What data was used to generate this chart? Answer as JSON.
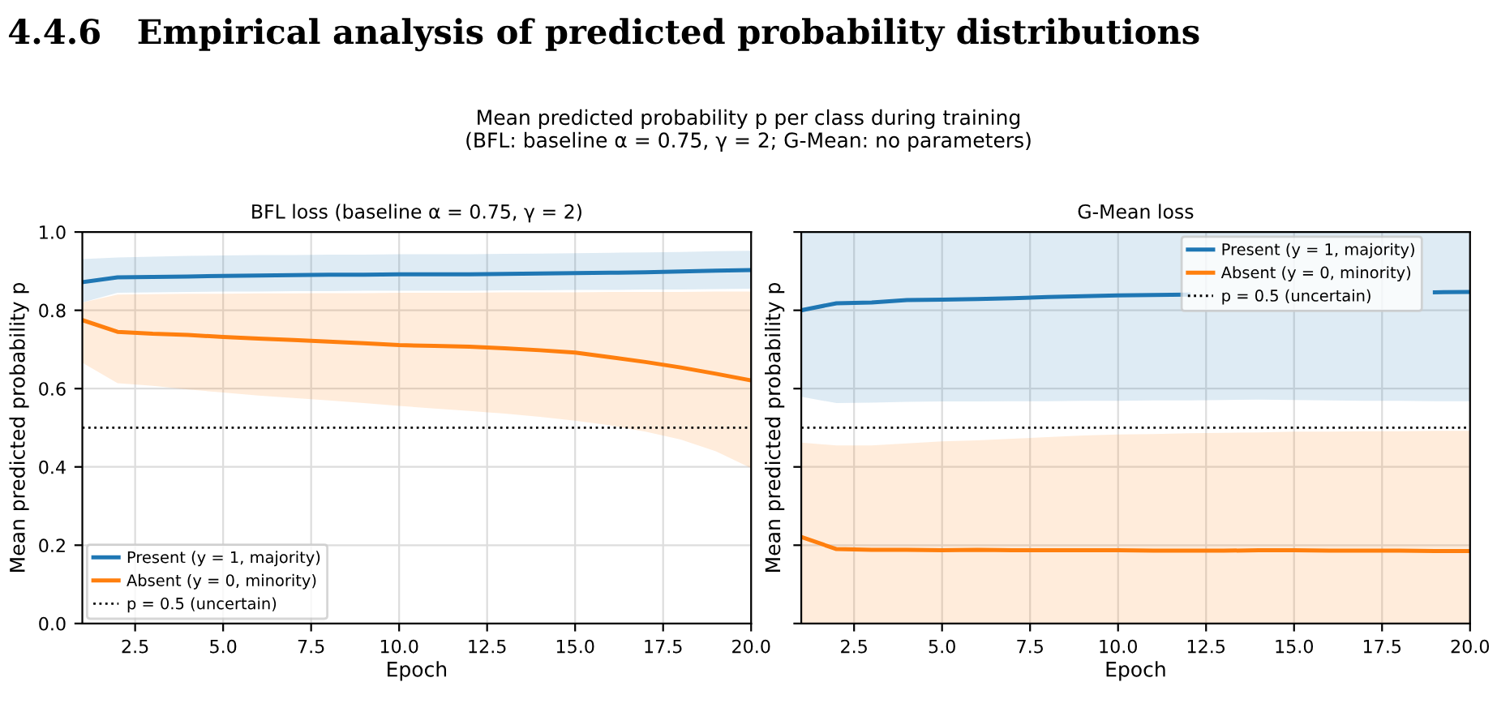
{
  "chart_data": [
    {
      "type": "line",
      "title": "BFL loss (baseline α = 0.75, γ = 2)",
      "xlabel": "Epoch",
      "ylabel": "Mean predicted probability p",
      "annotations": [
        "4.4.6   Empirical analysis of predicted probability distributions",
        "Mean predicted probability p per class during training\n(BFL: baseline α = 0.75, γ = 2; G-Mean: no parameters)"
      ],
      "x": [
        1,
        2,
        3,
        4,
        5,
        6,
        7,
        8,
        9,
        10,
        11,
        12,
        13,
        14,
        15,
        16,
        17,
        18,
        19,
        20
      ],
      "series": [
        {
          "name": "Present (y = 1, majority)",
          "color": "#1f77b4",
          "values": [
            0.872,
            0.884,
            0.885,
            0.886,
            0.888,
            0.889,
            0.89,
            0.891,
            0.891,
            0.892,
            0.892,
            0.892,
            0.893,
            0.894,
            0.895,
            0.896,
            0.897,
            0.899,
            0.901,
            0.903
          ],
          "lower": [
            0.82,
            0.845,
            0.846,
            0.847,
            0.848,
            0.848,
            0.849,
            0.849,
            0.85,
            0.85,
            0.85,
            0.85,
            0.851,
            0.851,
            0.852,
            0.852,
            0.853,
            0.853,
            0.854,
            0.855
          ],
          "upper": [
            0.931,
            0.935,
            0.937,
            0.939,
            0.94,
            0.941,
            0.941,
            0.942,
            0.942,
            0.943,
            0.943,
            0.943,
            0.944,
            0.945,
            0.946,
            0.947,
            0.948,
            0.949,
            0.951,
            0.952
          ]
        },
        {
          "name": "Absent (y = 0, minority)",
          "color": "#ff7f0e",
          "values": [
            0.775,
            0.745,
            0.74,
            0.737,
            0.732,
            0.728,
            0.724,
            0.72,
            0.716,
            0.711,
            0.709,
            0.707,
            0.703,
            0.698,
            0.692,
            0.68,
            0.668,
            0.654,
            0.638,
            0.621
          ],
          "lower": [
            0.666,
            0.614,
            0.607,
            0.598,
            0.59,
            0.582,
            0.576,
            0.57,
            0.563,
            0.556,
            0.549,
            0.543,
            0.536,
            0.528,
            0.518,
            0.506,
            0.49,
            0.47,
            0.44,
            0.397
          ],
          "upper": [
            0.82,
            0.84,
            0.841,
            0.842,
            0.842,
            0.843,
            0.843,
            0.844,
            0.844,
            0.845,
            0.845,
            0.845,
            0.846,
            0.846,
            0.846,
            0.847,
            0.847,
            0.847,
            0.848,
            0.848
          ]
        }
      ],
      "ref_lines": [
        {
          "axis": "y",
          "value": 0.5,
          "label": "p = 0.5 (uncertain)",
          "color": "#000000",
          "line_style": "dotted"
        }
      ],
      "xlim": [
        1,
        20
      ],
      "xticks": [
        {
          "value": 2.5,
          "label": "2.5"
        },
        {
          "value": 5,
          "label": "5.0"
        },
        {
          "value": 7.5,
          "label": "7.5"
        },
        {
          "value": 10,
          "label": "10.0"
        },
        {
          "value": 12.5,
          "label": "12.5"
        },
        {
          "value": 15,
          "label": "15.0"
        },
        {
          "value": 17.5,
          "label": "17.5"
        },
        {
          "value": 20,
          "label": "20.0"
        }
      ],
      "ylim": [
        0,
        1
      ],
      "yticks": [
        {
          "value": 0,
          "label": "0.0"
        },
        {
          "value": 0.2,
          "label": "0.2"
        },
        {
          "value": 0.4,
          "label": "0.4"
        },
        {
          "value": 0.6,
          "label": "0.6"
        },
        {
          "value": 0.8,
          "label": "0.8"
        },
        {
          "value": 1,
          "label": "1.0"
        }
      ],
      "grid": true,
      "legend": "bottom left",
      "line_style": "solid"
    },
    {
      "type": "line",
      "title": "G-Mean loss",
      "xlabel": "Epoch",
      "ylabel": "Mean predicted probability p",
      "x": [
        1,
        2,
        3,
        4,
        5,
        6,
        7,
        8,
        9,
        10,
        11,
        12,
        13,
        14,
        15,
        16,
        17,
        18,
        19,
        20
      ],
      "series": [
        {
          "name": "Present (y = 1, majority)",
          "color": "#1f77b4",
          "values": [
            0.8,
            0.818,
            0.82,
            0.826,
            0.827,
            0.829,
            0.831,
            0.834,
            0.836,
            0.838,
            0.839,
            0.84,
            null,
            null,
            null,
            null,
            null,
            null,
            0.846,
            0.847
          ],
          "lower": [
            0.579,
            0.563,
            0.564,
            0.566,
            0.567,
            0.567,
            0.568,
            0.568,
            0.569,
            0.569,
            0.57,
            0.57,
            0.571,
            0.572,
            0.571,
            0.57,
            0.569,
            0.569,
            0.568,
            0.568
          ],
          "upper": [
            1,
            1,
            1,
            1,
            1,
            1,
            1,
            1,
            1,
            1,
            1,
            1,
            1,
            1,
            1,
            1,
            1,
            1,
            1,
            1
          ]
        },
        {
          "name": "Absent (y = 0, minority)",
          "color": "#ff7f0e",
          "values": [
            0.221,
            0.19,
            0.188,
            0.188,
            0.187,
            0.188,
            0.187,
            0.187,
            0.187,
            0.187,
            0.186,
            0.186,
            0.186,
            0.187,
            0.187,
            0.186,
            0.186,
            0.186,
            0.185,
            0.185
          ],
          "lower": [
            0,
            0,
            0,
            0,
            0,
            0,
            0,
            0,
            0,
            0,
            0,
            0,
            0,
            0,
            0,
            0,
            0,
            0,
            0,
            0
          ],
          "upper": [
            0.462,
            0.455,
            0.455,
            0.46,
            0.465,
            0.468,
            0.472,
            0.476,
            0.48,
            0.483,
            0.484,
            0.486,
            0.487,
            0.488,
            0.49,
            0.49,
            0.491,
            0.491,
            0.492,
            0.492
          ]
        }
      ],
      "ref_lines": [
        {
          "axis": "y",
          "value": 0.5,
          "label": "p = 0.5 (uncertain)",
          "color": "#000000",
          "line_style": "dotted"
        }
      ],
      "xlim": [
        1,
        20
      ],
      "xticks": [
        {
          "value": 2.5,
          "label": "2.5"
        },
        {
          "value": 5,
          "label": "5.0"
        },
        {
          "value": 7.5,
          "label": "7.5"
        },
        {
          "value": 10,
          "label": "10.0"
        },
        {
          "value": 12.5,
          "label": "12.5"
        },
        {
          "value": 15,
          "label": "15.0"
        },
        {
          "value": 17.5,
          "label": "17.5"
        },
        {
          "value": 20,
          "label": "20.0"
        }
      ],
      "ylim": [
        0,
        1
      ],
      "yticks": [
        {
          "value": 0,
          "label": null
        },
        {
          "value": 0.2,
          "label": null
        },
        {
          "value": 0.4,
          "label": null
        },
        {
          "value": 0.6,
          "label": null
        },
        {
          "value": 0.8,
          "label": null
        },
        {
          "value": 1,
          "label": null
        }
      ],
      "tick_labels": "x",
      "grid": true,
      "legend": "top right",
      "line_style": "solid"
    }
  ]
}
